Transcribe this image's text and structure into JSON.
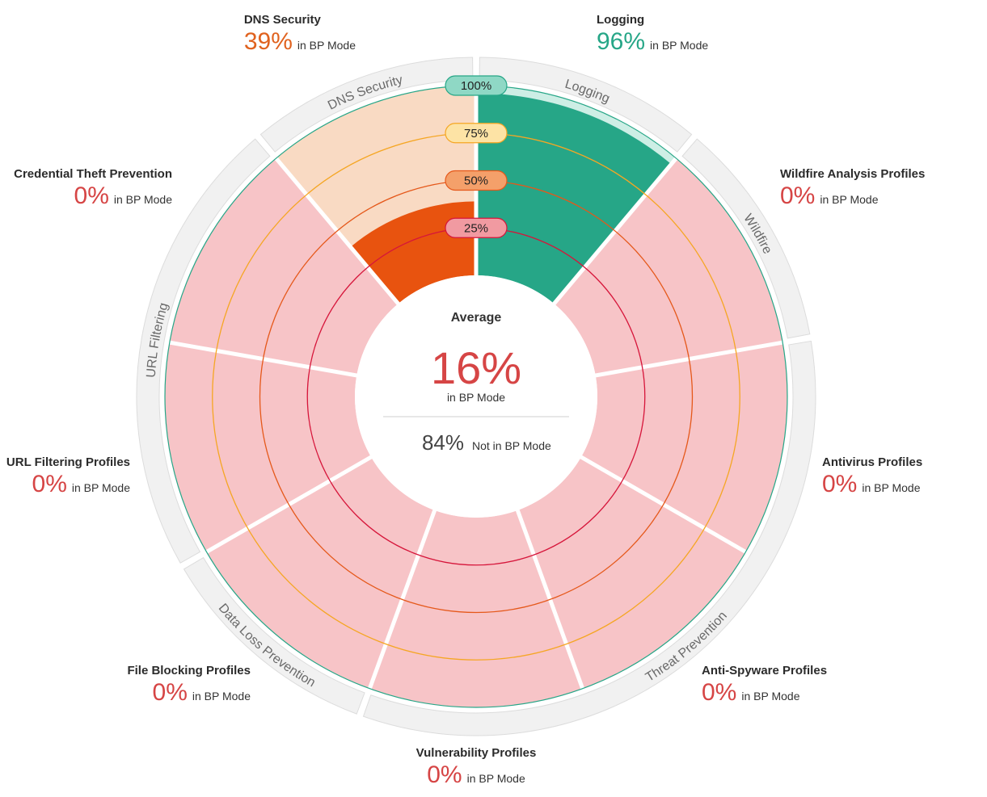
{
  "chart_data": {
    "type": "radial-bar",
    "center": {
      "title": "Average",
      "value": "16%",
      "value_label": "in BP Mode",
      "secondary_value": "84%",
      "secondary_label": "Not in BP Mode"
    },
    "rings": [
      "25%",
      "50%",
      "75%",
      "100%"
    ],
    "series_label": "in BP Mode",
    "categories": [
      {
        "name": "Logging",
        "group": "Logging",
        "value": 96,
        "display": "96%"
      },
      {
        "name": "Wildfire Analysis Profiles",
        "group": "Wildfire",
        "value": 0,
        "display": "0%"
      },
      {
        "name": "Antivirus Profiles",
        "group": "Threat Prevention",
        "value": 0,
        "display": "0%"
      },
      {
        "name": "Anti-Spyware Profiles",
        "group": "Threat Prevention",
        "value": 0,
        "display": "0%"
      },
      {
        "name": "Vulnerability Profiles",
        "group": "Threat Prevention",
        "value": 0,
        "display": "0%"
      },
      {
        "name": "File Blocking Profiles",
        "group": "Data Loss Prevention",
        "value": 0,
        "display": "0%"
      },
      {
        "name": "URL Filtering Profiles",
        "group": "URL Filtering",
        "value": 0,
        "display": "0%"
      },
      {
        "name": "Credential Theft Prevention",
        "group": "URL Filtering",
        "value": 0,
        "display": "0%"
      },
      {
        "name": "DNS Security",
        "group": "DNS Security",
        "value": 39,
        "display": "39%"
      }
    ],
    "groups": [
      "Logging",
      "Wildfire",
      "Threat Prevention",
      "Data Loss Prevention",
      "URL Filtering",
      "DNS Security"
    ],
    "colors": {
      "Logging": {
        "fill": "#26a687",
        "bg": "#cdeee5",
        "text": "#26a687"
      },
      "DNS Security": {
        "fill": "#e8530f",
        "bg": "#f9dac3",
        "text": "#e0621e"
      },
      "default": {
        "fill": "#e24e4e",
        "bg": "#f7c4c7",
        "text": "#d64545"
      }
    },
    "ring_colors": {
      "25%": "#d6153a",
      "50%": "#e5581a",
      "75%": "#f5a623",
      "100%": "#26a687"
    },
    "badge_colors": {
      "25%": "#f19aa1",
      "50%": "#f4a06a",
      "75%": "#fde3a5",
      "100%": "#8fd8c5"
    }
  }
}
